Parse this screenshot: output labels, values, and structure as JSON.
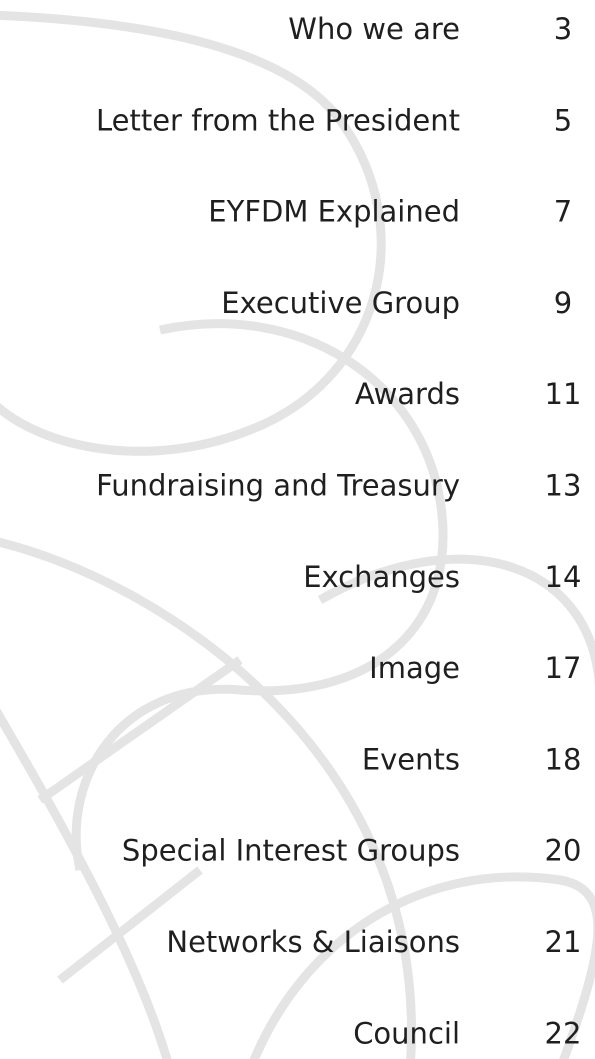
{
  "toc": {
    "entries": [
      {
        "title": "Who we are",
        "page": 3
      },
      {
        "title": "Letter from the President",
        "page": 5
      },
      {
        "title": "EYFDM Explained",
        "page": 7
      },
      {
        "title": "Executive Group",
        "page": 9
      },
      {
        "title": "Awards",
        "page": 11
      },
      {
        "title": "Fundraising and Treasury",
        "page": 13
      },
      {
        "title": "Exchanges",
        "page": 14
      },
      {
        "title": "Image",
        "page": 17
      },
      {
        "title": "Events",
        "page": 18
      },
      {
        "title": "Special Interest Groups",
        "page": 20
      },
      {
        "title": "Networks & Liaisons",
        "page": 21
      },
      {
        "title": "Council",
        "page": 22
      }
    ]
  }
}
